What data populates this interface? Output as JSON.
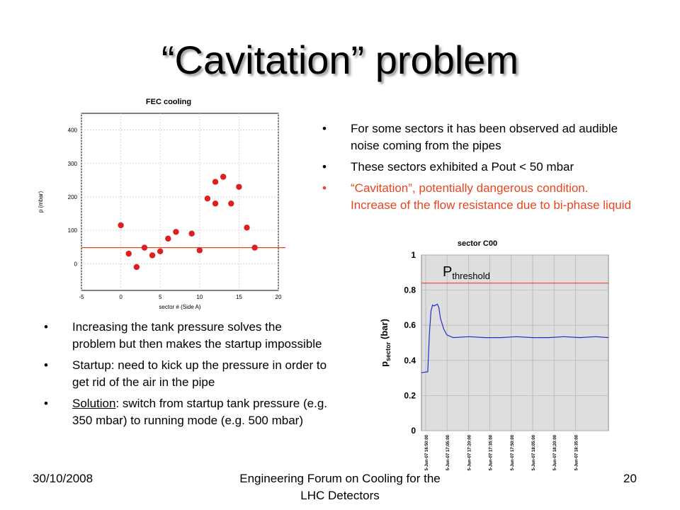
{
  "slide": {
    "title": "“Cavitation” problem",
    "bullets_right": [
      "For some sectors it has been observed ad audible noise coming from the pipes",
      "These sectors exhibited a Pout < 50 mbar",
      "“Cavitation”, potentially dangerous condition. Increase of the flow resistance due to bi-phase liquid"
    ],
    "bullets_left": [
      "Increasing the tank pressure solves the problem but then makes the startup impossible",
      "Startup: need to kick up the pressure in order to get rid of the air in the pipe"
    ],
    "solution_bullet": {
      "label": "Solution",
      "text": ": switch from startup tank pressure (e.g. 350 mbar) to running mode (e.g. 500 mbar)"
    },
    "footer": {
      "date": "30/10/2008",
      "center": "Engineering Forum on Cooling for the LHC Detectors",
      "page": "20"
    }
  },
  "colors": {
    "accent": "#e8451f",
    "marker": "#dd1f1f",
    "threshold_line": "#e8451f",
    "trace": "#1f2fcc",
    "plot_bg": "#dedede"
  },
  "chart_data": [
    {
      "type": "scatter",
      "title": "FEC cooling",
      "xlabel": "sector # (Side A)",
      "ylabel": "p (mbar)",
      "xlim": [
        -5,
        20
      ],
      "ylim": [
        -80,
        450
      ],
      "xticks": [
        "-5",
        "0",
        "5",
        "10",
        "15",
        "20"
      ],
      "yticks": [
        "0",
        "100",
        "200",
        "300",
        "400"
      ],
      "grid": true,
      "x": [
        0,
        1,
        2,
        3,
        4,
        5,
        6,
        7,
        9,
        10,
        11,
        12,
        12,
        13,
        14,
        15,
        16,
        17
      ],
      "y": [
        115,
        30,
        -10,
        48,
        25,
        37,
        75,
        95,
        90,
        40,
        195,
        245,
        180,
        260,
        180,
        230,
        108,
        48
      ],
      "reference_line": 48
    },
    {
      "type": "line",
      "title": "sector C00",
      "ylabel": "p",
      "ylabel_sub": "sector",
      "ylabel_unit": "(bar)",
      "ylim": [
        0,
        1
      ],
      "yticks": [
        "0",
        "0.2",
        "0.4",
        "0.6",
        "0.8",
        "1"
      ],
      "xticks": [
        "5-Jun-07 16:50:00",
        "5-Jun-07 17:05:00",
        "5-Jun-07 17:20:00",
        "5-Jun-07 17:35:00",
        "5-Jun-07 17:50:00",
        "5-Jun-07 18:05:00",
        "5-Jun-07 18:20:00",
        "5-Jun-07 18:35:00"
      ],
      "threshold": 0.84,
      "threshold_label": "P",
      "threshold_label_sub": "threshold",
      "grid": true,
      "x_minutes": [
        0,
        4,
        5,
        6,
        7,
        8,
        10,
        11,
        12,
        14,
        16,
        20,
        30,
        40,
        50,
        60,
        70,
        80,
        90,
        100,
        110,
        118
      ],
      "y": [
        0.33,
        0.335,
        0.55,
        0.68,
        0.715,
        0.71,
        0.72,
        0.7,
        0.64,
        0.58,
        0.545,
        0.53,
        0.535,
        0.53,
        0.53,
        0.535,
        0.53,
        0.53,
        0.535,
        0.53,
        0.535,
        0.53
      ]
    }
  ]
}
